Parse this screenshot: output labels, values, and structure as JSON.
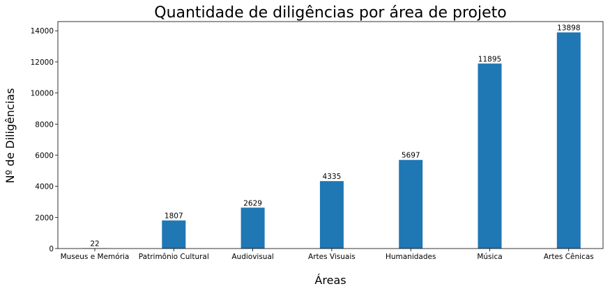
{
  "chart_data": {
    "type": "bar",
    "title": "Quantidade de diligências por área de projeto",
    "xlabel": "Áreas",
    "ylabel": "Nº de Diligências",
    "categories": [
      "Museus e Memória",
      "Patrimônio Cultural",
      "Audiovisual",
      "Artes Visuais",
      "Humanidades",
      "Música",
      "Artes Cênicas"
    ],
    "values": [
      22,
      1807,
      2629,
      4335,
      5697,
      11895,
      13898
    ],
    "data_labels": [
      "22",
      "1807",
      "2629",
      "4335",
      "5697",
      "11895",
      "13898"
    ],
    "yticks": [
      0,
      2000,
      4000,
      6000,
      8000,
      10000,
      12000,
      14000
    ],
    "ytick_labels": [
      "0",
      "2000",
      "4000",
      "6000",
      "8000",
      "10000",
      "12000",
      "14000"
    ],
    "ylim": [
      0,
      14593
    ],
    "grid": false,
    "legend": "none",
    "bar_color": "#1f77b4"
  }
}
